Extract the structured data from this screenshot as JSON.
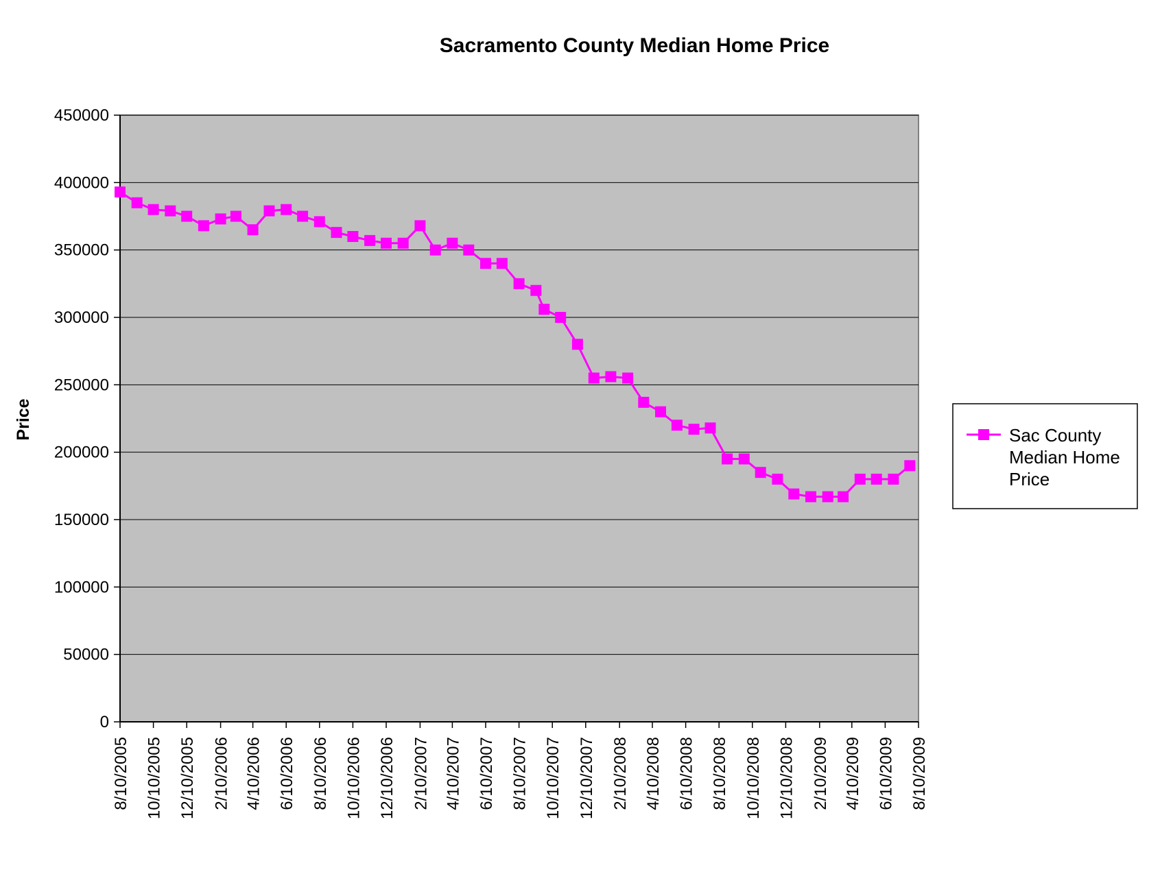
{
  "colors": {
    "series": "#ff00ff",
    "plot_background": "#c0c0c0",
    "gridline": "#000000",
    "axis": "#000000",
    "plot_border": "#808080"
  },
  "chart_data": {
    "type": "line",
    "title": "Sacramento County Median Home Price",
    "xlabel": "",
    "ylabel": "Price",
    "ylim": [
      0,
      450000
    ],
    "yticks": [
      "450000",
      "400000",
      "350000",
      "300000",
      "250000",
      "200000",
      "150000",
      "100000",
      "50000",
      "0"
    ],
    "xtick_labels": [
      "8/10/2005",
      "10/10/2005",
      "12/10/2005",
      "2/10/2006",
      "4/10/2006",
      "6/10/2006",
      "8/10/2006",
      "10/10/2006",
      "12/10/2006",
      "2/10/2007",
      "4/10/2007",
      "6/10/2007",
      "8/10/2007",
      "10/10/2007",
      "12/10/2007",
      "2/10/2008",
      "4/10/2008",
      "6/10/2008",
      "8/10/2008",
      "10/10/2008",
      "12/10/2008",
      "2/10/2009",
      "4/10/2009",
      "6/10/2009",
      "8/10/2009"
    ],
    "grid": true,
    "legend_position": "right",
    "series": [
      {
        "name": "Sac County Median Home Price",
        "marker": "square",
        "points": [
          [
            "2005-08-10",
            393000
          ],
          [
            "2005-09-10",
            385000
          ],
          [
            "2005-10-10",
            380000
          ],
          [
            "2005-11-10",
            379000
          ],
          [
            "2005-12-10",
            375000
          ],
          [
            "2006-01-10",
            368000
          ],
          [
            "2006-02-10",
            373000
          ],
          [
            "2006-03-10",
            375000
          ],
          [
            "2006-04-10",
            365000
          ],
          [
            "2006-05-10",
            379000
          ],
          [
            "2006-06-10",
            380000
          ],
          [
            "2006-07-10",
            375000
          ],
          [
            "2006-08-10",
            371000
          ],
          [
            "2006-09-10",
            363000
          ],
          [
            "2006-10-10",
            360000
          ],
          [
            "2006-11-10",
            357000
          ],
          [
            "2006-12-10",
            355000
          ],
          [
            "2007-01-10",
            355000
          ],
          [
            "2007-02-10",
            368000
          ],
          [
            "2007-03-10",
            350000
          ],
          [
            "2007-04-10",
            355000
          ],
          [
            "2007-05-10",
            350000
          ],
          [
            "2007-06-10",
            340000
          ],
          [
            "2007-07-10",
            340000
          ],
          [
            "2007-08-10",
            325000
          ],
          [
            "2007-09-10",
            320000
          ],
          [
            "2007-09-25",
            306000
          ],
          [
            "2007-10-25",
            300000
          ],
          [
            "2007-11-25",
            280000
          ],
          [
            "2007-12-25",
            255000
          ],
          [
            "2008-01-25",
            256000
          ],
          [
            "2008-02-25",
            255000
          ],
          [
            "2008-03-25",
            237000
          ],
          [
            "2008-04-25",
            230000
          ],
          [
            "2008-05-25",
            220000
          ],
          [
            "2008-06-25",
            217000
          ],
          [
            "2008-07-25",
            218000
          ],
          [
            "2008-08-25",
            195000
          ],
          [
            "2008-09-25",
            195000
          ],
          [
            "2008-10-25",
            185000
          ],
          [
            "2008-11-25",
            180000
          ],
          [
            "2008-12-25",
            169000
          ],
          [
            "2009-01-25",
            167000
          ],
          [
            "2009-02-25",
            167000
          ],
          [
            "2009-03-25",
            167000
          ],
          [
            "2009-04-25",
            180000
          ],
          [
            "2009-05-25",
            180000
          ],
          [
            "2009-06-25",
            180000
          ],
          [
            "2009-07-25",
            190000
          ]
        ]
      }
    ]
  }
}
